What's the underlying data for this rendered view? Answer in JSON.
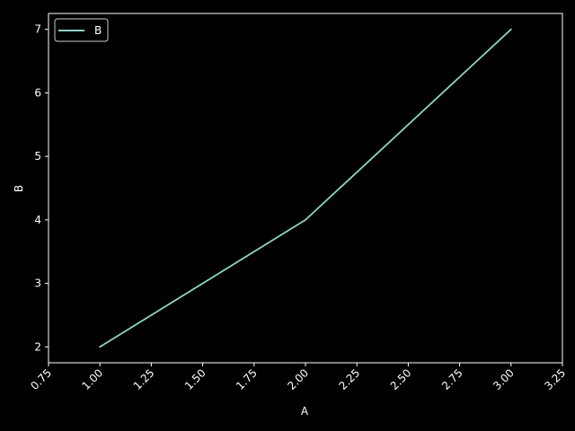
{
  "chart_data": {
    "type": "line",
    "title": "",
    "xlabel": "A",
    "ylabel": "B",
    "x": [
      1.0,
      2.0,
      3.0
    ],
    "series": [
      {
        "name": "B",
        "values": [
          2,
          4,
          7
        ],
        "color": "#8dd3c7"
      }
    ],
    "xlim": [
      0.75,
      3.25
    ],
    "ylim": [
      1.75,
      7.25
    ],
    "xticks": [
      "0.75",
      "1.00",
      "1.25",
      "1.50",
      "1.75",
      "2.00",
      "2.25",
      "2.50",
      "2.75",
      "3.00",
      "3.25"
    ],
    "yticks": [
      "2",
      "3",
      "4",
      "5",
      "6",
      "7"
    ],
    "xtick_rotation": 45,
    "grid": false,
    "legend": {
      "position": "top-left"
    },
    "colors": {
      "background": "#000000",
      "axes": "#ffffff",
      "text": "#ffffff"
    }
  }
}
